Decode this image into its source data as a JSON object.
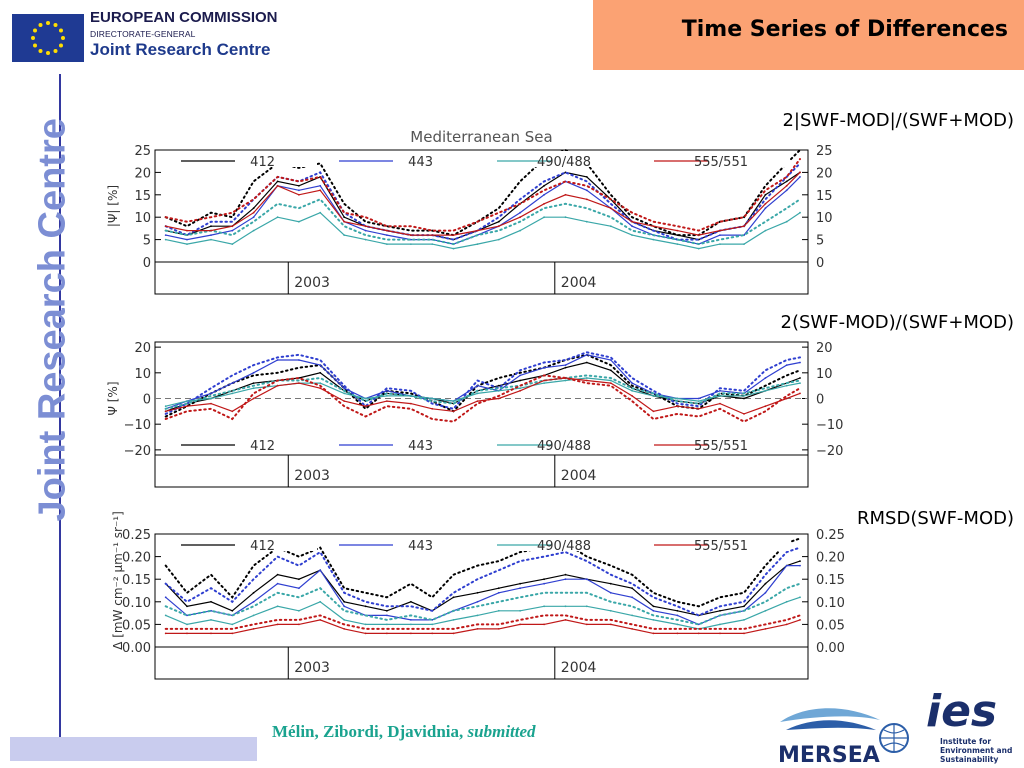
{
  "header": {
    "org_line1": "EUROPEAN COMMISSION",
    "org_line2": "DIRECTORATE-GENERAL",
    "org_line3": "Joint Research Centre",
    "slide_title": "Time Series of Differences",
    "side_text": "Joint Research Centre"
  },
  "footer": {
    "citation_authors": "Mélin, Zibordi, Djavidnia, ",
    "citation_status": "submitted",
    "mersea_text": "MERSEA",
    "ies_text": "ies",
    "ies_caption_1": "Institute for",
    "ies_caption_2": "Environment and",
    "ies_caption_3": "Sustainability"
  },
  "colors": {
    "title_bg": "#fba273",
    "jrc_blue": "#7c8ed4",
    "rule": "#3338a0",
    "citation": "#1aa38f"
  },
  "chart_data": [
    {
      "type": "line",
      "caption": "2|SWF-MOD|/(SWF+MOD)",
      "title": "Mediterranean Sea",
      "ylabel": "|Ψ| [%]",
      "ylim": [
        0,
        25
      ],
      "yticks": [
        "0",
        "5",
        "10",
        "15",
        "20",
        "25"
      ],
      "x_range": [
        2002.5,
        2004.95
      ],
      "x_year_labels": [
        {
          "x": 2003,
          "label": "2003"
        },
        {
          "x": 2004,
          "label": "2004"
        }
      ],
      "x": [
        2002.54,
        2002.62,
        2002.71,
        2002.79,
        2002.87,
        2002.96,
        2003.04,
        2003.12,
        2003.21,
        2003.29,
        2003.37,
        2003.46,
        2003.54,
        2003.62,
        2003.71,
        2003.79,
        2003.87,
        2003.96,
        2004.04,
        2004.12,
        2004.21,
        2004.29,
        2004.37,
        2004.46,
        2004.54,
        2004.62,
        2004.71,
        2004.79,
        2004.87,
        2004.92
      ],
      "series": [
        {
          "name": "412",
          "color": "#000000",
          "solid": [
            7,
            6,
            8,
            8,
            12,
            18,
            17,
            19,
            10,
            8,
            7,
            6,
            6,
            5,
            7,
            9,
            13,
            17,
            20,
            19,
            14,
            9,
            7,
            6,
            5,
            7,
            8,
            15,
            18,
            20
          ],
          "dotted": [
            10,
            8,
            11,
            10,
            18,
            22,
            21,
            22,
            13,
            9,
            8,
            7,
            7,
            6,
            9,
            12,
            18,
            23,
            25,
            22,
            15,
            10,
            8,
            6,
            6,
            9,
            10,
            17,
            22,
            25
          ]
        },
        {
          "name": "443",
          "color": "#2f3fd0",
          "solid": [
            6,
            5,
            6,
            7,
            10,
            17,
            16,
            17,
            9,
            7,
            6,
            5,
            5,
            4,
            6,
            8,
            11,
            15,
            18,
            16,
            12,
            8,
            6,
            5,
            4,
            6,
            6,
            12,
            16,
            19
          ],
          "dotted": [
            8,
            6,
            9,
            9,
            14,
            19,
            18,
            20,
            11,
            8,
            7,
            6,
            6,
            5,
            7,
            10,
            14,
            18,
            20,
            18,
            13,
            9,
            7,
            5,
            5,
            7,
            8,
            14,
            19,
            22
          ]
        },
        {
          "name": "490/488",
          "color": "#3aa7a8",
          "solid": [
            5,
            4,
            5,
            4,
            7,
            10,
            9,
            11,
            6,
            5,
            4,
            4,
            4,
            3,
            4,
            5,
            7,
            10,
            10,
            9,
            8,
            6,
            5,
            4,
            3,
            4,
            4,
            7,
            9,
            11
          ],
          "dotted": [
            7,
            6,
            7,
            6,
            9,
            13,
            12,
            14,
            8,
            6,
            5,
            5,
            5,
            4,
            6,
            7,
            9,
            12,
            13,
            12,
            10,
            7,
            6,
            5,
            4,
            5,
            6,
            9,
            12,
            14
          ]
        },
        {
          "name": "555/551",
          "color": "#c01818",
          "solid": [
            8,
            7,
            7,
            8,
            11,
            17,
            15,
            16,
            9,
            8,
            7,
            6,
            6,
            6,
            7,
            8,
            10,
            13,
            15,
            14,
            12,
            9,
            8,
            7,
            6,
            7,
            8,
            13,
            17,
            20
          ],
          "dotted": [
            10,
            9,
            10,
            11,
            14,
            19,
            18,
            19,
            11,
            10,
            8,
            8,
            7,
            7,
            9,
            11,
            13,
            16,
            18,
            17,
            14,
            11,
            9,
            8,
            7,
            9,
            10,
            16,
            19,
            23
          ]
        }
      ]
    },
    {
      "type": "line",
      "caption": "2(SWF-MOD)/(SWF+MOD)",
      "title": "",
      "ylabel": "Ψ [%]",
      "ylim": [
        -22,
        22
      ],
      "yticks": [
        "−20",
        "−10",
        "0",
        "10",
        "20"
      ],
      "ytick_values": [
        -20,
        -10,
        0,
        10,
        20
      ],
      "zero_line": true,
      "x_range": [
        2002.5,
        2004.95
      ],
      "x_year_labels": [
        {
          "x": 2003,
          "label": "2003"
        },
        {
          "x": 2004,
          "label": "2004"
        }
      ],
      "x": [
        2002.54,
        2002.62,
        2002.71,
        2002.79,
        2002.87,
        2002.96,
        2003.04,
        2003.12,
        2003.21,
        2003.29,
        2003.37,
        2003.46,
        2003.54,
        2003.62,
        2003.71,
        2003.79,
        2003.87,
        2003.96,
        2004.04,
        2004.12,
        2004.21,
        2004.29,
        2004.37,
        2004.46,
        2004.54,
        2004.62,
        2004.71,
        2004.79,
        2004.87,
        2004.92
      ],
      "series": [
        {
          "name": "412",
          "color": "#000000",
          "solid": [
            -5,
            -2,
            0,
            3,
            6,
            7,
            8,
            10,
            3,
            -1,
            2,
            1,
            0,
            -2,
            3,
            5,
            7,
            9,
            12,
            14,
            11,
            4,
            1,
            -1,
            -2,
            1,
            0,
            3,
            6,
            8
          ],
          "dotted": [
            -7,
            -3,
            2,
            6,
            9,
            10,
            12,
            13,
            4,
            -4,
            3,
            2,
            -1,
            -5,
            5,
            8,
            10,
            12,
            15,
            17,
            13,
            5,
            2,
            -3,
            -4,
            2,
            1,
            5,
            9,
            11
          ]
        },
        {
          "name": "443",
          "color": "#2f3fd0",
          "solid": [
            -4,
            -1,
            2,
            6,
            10,
            15,
            15,
            13,
            4,
            0,
            3,
            1,
            0,
            -1,
            5,
            3,
            9,
            12,
            13,
            17,
            15,
            6,
            2,
            0,
            0,
            3,
            2,
            8,
            13,
            14
          ],
          "dotted": [
            -6,
            -2,
            4,
            9,
            13,
            16,
            17,
            15,
            5,
            -3,
            4,
            3,
            -2,
            -4,
            7,
            4,
            11,
            14,
            15,
            18,
            16,
            8,
            3,
            -2,
            -3,
            4,
            3,
            11,
            15,
            16
          ]
        },
        {
          "name": "490/488",
          "color": "#3aa7a8",
          "solid": [
            -3,
            -1,
            0,
            2,
            4,
            5,
            6,
            6,
            2,
            0,
            1,
            1,
            0,
            -1,
            2,
            3,
            4,
            6,
            7,
            8,
            7,
            3,
            1,
            0,
            -1,
            1,
            1,
            3,
            5,
            6
          ],
          "dotted": [
            -4,
            -2,
            1,
            3,
            5,
            7,
            7,
            8,
            3,
            -1,
            2,
            1,
            -1,
            -2,
            3,
            4,
            5,
            7,
            8,
            9,
            8,
            4,
            2,
            -1,
            -2,
            2,
            2,
            4,
            6,
            7
          ]
        },
        {
          "name": "555/551",
          "color": "#c01818",
          "solid": [
            -5,
            -3,
            -2,
            -5,
            0,
            5,
            6,
            4,
            -1,
            -3,
            -1,
            -2,
            -4,
            -5,
            -1,
            0,
            3,
            7,
            8,
            7,
            6,
            1,
            -5,
            -3,
            -4,
            -2,
            -6,
            -3,
            0,
            2
          ],
          "dotted": [
            -8,
            -5,
            -4,
            -8,
            2,
            7,
            8,
            5,
            -3,
            -7,
            -3,
            -4,
            -8,
            -9,
            -2,
            1,
            5,
            9,
            8,
            6,
            5,
            -1,
            -8,
            -6,
            -7,
            -4,
            -9,
            -5,
            1,
            4
          ]
        }
      ]
    },
    {
      "type": "line",
      "caption": "RMSD(SWF-MOD)",
      "title": "",
      "ylabel": "Δ [mW cm⁻² μm⁻¹ sr⁻¹]",
      "ylim": [
        0,
        0.25
      ],
      "yticks": [
        "0.00",
        "0.05",
        "0.10",
        "0.15",
        "0.20",
        "0.25"
      ],
      "x_range": [
        2002.5,
        2004.95
      ],
      "x_year_labels": [
        {
          "x": 2003,
          "label": "2003"
        },
        {
          "x": 2004,
          "label": "2004"
        }
      ],
      "x": [
        2002.54,
        2002.62,
        2002.71,
        2002.79,
        2002.87,
        2002.96,
        2003.04,
        2003.12,
        2003.21,
        2003.29,
        2003.37,
        2003.46,
        2003.54,
        2003.62,
        2003.71,
        2003.79,
        2003.87,
        2003.96,
        2004.04,
        2004.12,
        2004.21,
        2004.29,
        2004.37,
        2004.46,
        2004.54,
        2004.62,
        2004.71,
        2004.79,
        2004.87,
        2004.92
      ],
      "series": [
        {
          "name": "412",
          "color": "#000000",
          "solid": [
            0.14,
            0.09,
            0.1,
            0.08,
            0.12,
            0.16,
            0.15,
            0.17,
            0.1,
            0.09,
            0.08,
            0.1,
            0.08,
            0.11,
            0.12,
            0.13,
            0.14,
            0.15,
            0.16,
            0.15,
            0.14,
            0.13,
            0.09,
            0.08,
            0.07,
            0.08,
            0.09,
            0.14,
            0.18,
            0.19
          ],
          "dotted": [
            0.18,
            0.12,
            0.16,
            0.11,
            0.18,
            0.22,
            0.2,
            0.22,
            0.13,
            0.12,
            0.11,
            0.14,
            0.11,
            0.16,
            0.18,
            0.19,
            0.21,
            0.22,
            0.23,
            0.2,
            0.18,
            0.16,
            0.12,
            0.1,
            0.09,
            0.11,
            0.12,
            0.18,
            0.23,
            0.24
          ]
        },
        {
          "name": "443",
          "color": "#2f3fd0",
          "solid": [
            0.11,
            0.07,
            0.08,
            0.07,
            0.1,
            0.14,
            0.13,
            0.17,
            0.09,
            0.07,
            0.07,
            0.06,
            0.06,
            0.08,
            0.1,
            0.12,
            0.13,
            0.14,
            0.15,
            0.15,
            0.12,
            0.11,
            0.08,
            0.07,
            0.05,
            0.07,
            0.08,
            0.12,
            0.18,
            0.18
          ],
          "dotted": [
            0.14,
            0.1,
            0.13,
            0.1,
            0.15,
            0.2,
            0.18,
            0.21,
            0.12,
            0.1,
            0.09,
            0.09,
            0.08,
            0.12,
            0.15,
            0.17,
            0.19,
            0.2,
            0.21,
            0.19,
            0.16,
            0.14,
            0.11,
            0.09,
            0.07,
            0.09,
            0.1,
            0.16,
            0.21,
            0.22
          ]
        },
        {
          "name": "490/488",
          "color": "#3aa7a8",
          "solid": [
            0.07,
            0.05,
            0.06,
            0.05,
            0.07,
            0.09,
            0.08,
            0.1,
            0.06,
            0.05,
            0.05,
            0.05,
            0.05,
            0.06,
            0.07,
            0.08,
            0.08,
            0.09,
            0.09,
            0.09,
            0.08,
            0.07,
            0.06,
            0.05,
            0.04,
            0.05,
            0.06,
            0.08,
            0.1,
            0.11
          ],
          "dotted": [
            0.09,
            0.07,
            0.08,
            0.07,
            0.09,
            0.12,
            0.11,
            0.13,
            0.08,
            0.07,
            0.06,
            0.07,
            0.06,
            0.08,
            0.09,
            0.1,
            0.11,
            0.12,
            0.12,
            0.12,
            0.1,
            0.09,
            0.07,
            0.06,
            0.05,
            0.07,
            0.08,
            0.1,
            0.13,
            0.14
          ]
        },
        {
          "name": "555/551",
          "color": "#c01818",
          "solid": [
            0.03,
            0.03,
            0.03,
            0.03,
            0.04,
            0.05,
            0.05,
            0.06,
            0.04,
            0.03,
            0.03,
            0.03,
            0.03,
            0.03,
            0.04,
            0.04,
            0.05,
            0.05,
            0.06,
            0.05,
            0.05,
            0.04,
            0.03,
            0.03,
            0.03,
            0.03,
            0.03,
            0.04,
            0.05,
            0.06
          ],
          "dotted": [
            0.04,
            0.04,
            0.04,
            0.04,
            0.05,
            0.06,
            0.06,
            0.07,
            0.05,
            0.04,
            0.04,
            0.04,
            0.04,
            0.04,
            0.05,
            0.05,
            0.06,
            0.07,
            0.07,
            0.06,
            0.06,
            0.05,
            0.04,
            0.04,
            0.04,
            0.04,
            0.04,
            0.05,
            0.06,
            0.07
          ]
        }
      ]
    }
  ]
}
